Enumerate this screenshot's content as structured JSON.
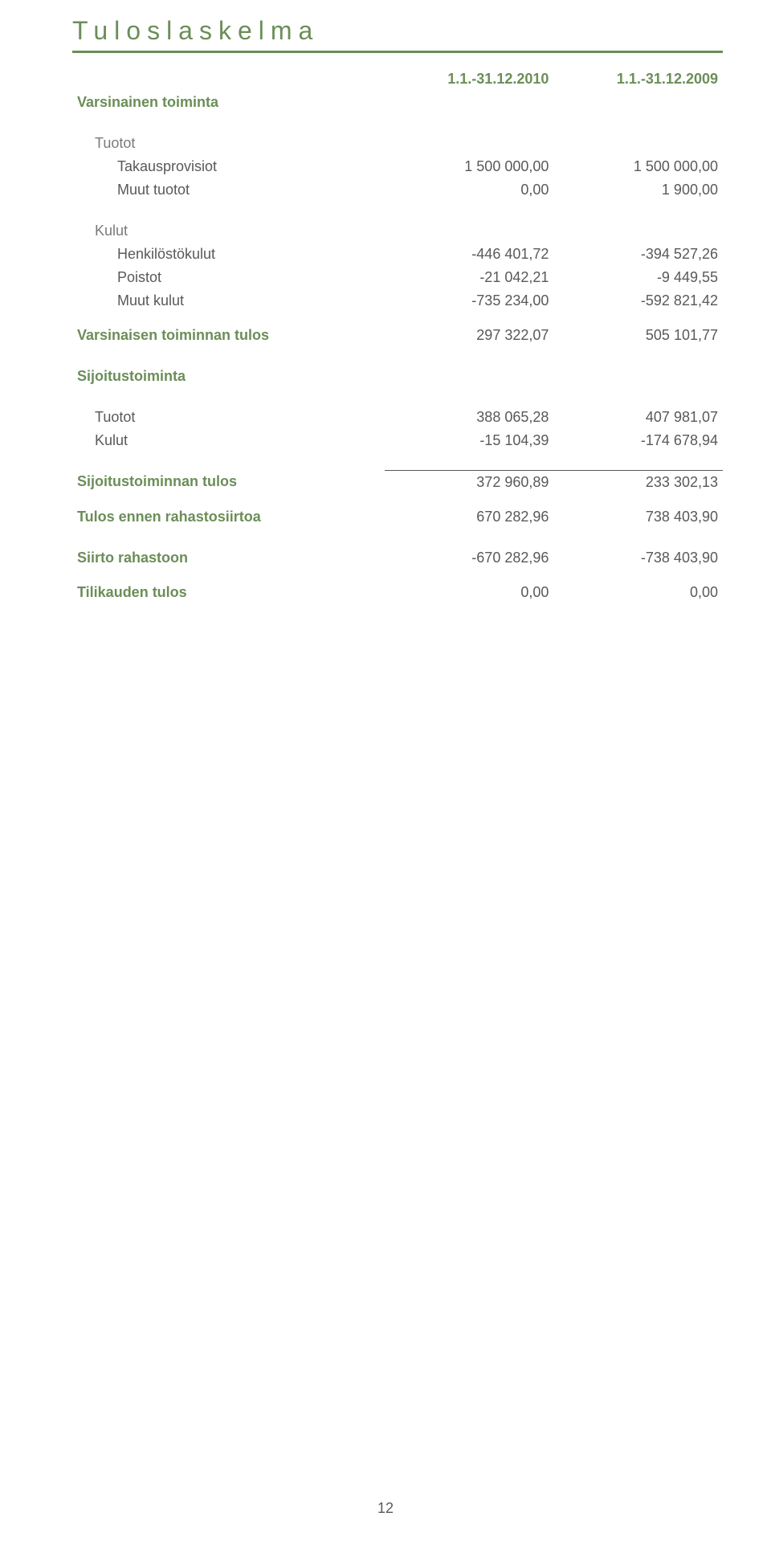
{
  "title": "Tuloslaskelma",
  "periods": {
    "p1": "1.1.-31.12.2010",
    "p2": "1.1.-31.12.2009"
  },
  "sections": {
    "varsinainen_toiminta": "Varsinainen toiminta",
    "varsinaisen_tulos": "Varsinaisen toiminnan tulos",
    "sijoitustoiminta": "Sijoitustoiminta",
    "sijoitus_tulos": "Sijoitustoiminnan tulos",
    "tulos_ennen": "Tulos ennen rahastosiirtoa",
    "siirto_rahastoon": "Siirto rahastoon",
    "tilikauden_tulos": "Tilikauden tulos"
  },
  "labels": {
    "tuotot": "Tuotot",
    "takausprovisiot": "Takausprovisiot",
    "muut_tuotot": "Muut tuotot",
    "kulut": "Kulut",
    "henkilostokulut": "Henkilöstökulut",
    "poistot": "Poistot",
    "muut_kulut": "Muut kulut"
  },
  "values": {
    "takausprovisiot": {
      "v1": "1 500 000,00",
      "v2": "1 500 000,00"
    },
    "muut_tuotot": {
      "v1": "0,00",
      "v2": "1 900,00"
    },
    "henkilostokulut": {
      "v1": "-446 401,72",
      "v2": "-394 527,26"
    },
    "poistot": {
      "v1": "-21 042,21",
      "v2": "-9 449,55"
    },
    "muut_kulut": {
      "v1": "-735 234,00",
      "v2": "-592 821,42"
    },
    "varsinaisen_tulos": {
      "v1": "297 322,07",
      "v2": "505 101,77"
    },
    "sij_tuotot": {
      "v1": "388 065,28",
      "v2": "407 981,07"
    },
    "sij_kulut": {
      "v1": "-15 104,39",
      "v2": "-174 678,94"
    },
    "sijoitus_tulos": {
      "v1": "372 960,89",
      "v2": "233 302,13"
    },
    "tulos_ennen": {
      "v1": "670 282,96",
      "v2": "738 403,90"
    },
    "siirto_rahastoon": {
      "v1": "-670 282,96",
      "v2": "-738 403,90"
    },
    "tilikauden_tulos": {
      "v1": "0,00",
      "v2": "0,00"
    }
  },
  "page_number": "12",
  "colors": {
    "accent": "#6b8e58",
    "text": "#595959",
    "background": "#ffffff"
  }
}
